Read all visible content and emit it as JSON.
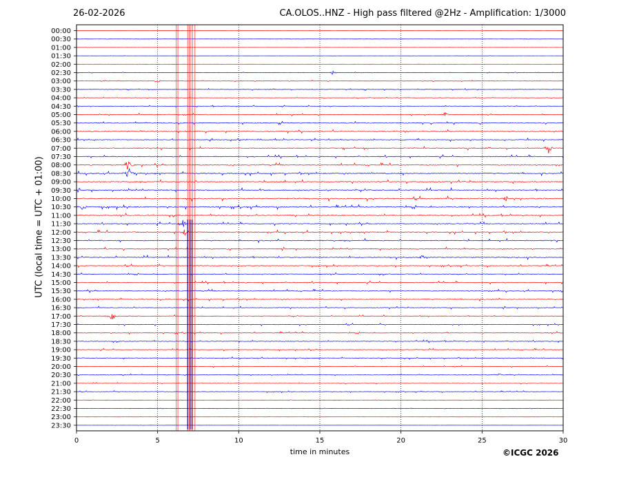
{
  "header": {
    "date": "26-02-2026",
    "title": "CA.OLOS..HNZ - High pass filtered @2Hz - Amplification: 1/3000"
  },
  "footer": {
    "copyright": "©ICGC 2026"
  },
  "chart_data": {
    "type": "line",
    "title": "CA.OLOS..HNZ - High pass filtered @2Hz - Amplification: 1/3000",
    "xlabel": "time in minutes",
    "ylabel": "UTC (local time = UTC + 01:00)",
    "xlim": [
      0,
      30
    ],
    "x_ticks": [
      0,
      5,
      10,
      15,
      20,
      25,
      30
    ],
    "x_grid": "dotted vertical lines at each x tick",
    "rows": [
      "00:00",
      "00:30",
      "01:00",
      "01:30",
      "02:00",
      "02:30",
      "03:00",
      "03:30",
      "04:00",
      "04:30",
      "05:00",
      "05:30",
      "06:00",
      "06:30",
      "07:00",
      "07:30",
      "08:00",
      "08:30",
      "09:00",
      "09:30",
      "10:00",
      "10:30",
      "11:00",
      "11:30",
      "12:00",
      "12:30",
      "13:00",
      "13:30",
      "14:00",
      "14:30",
      "15:00",
      "15:30",
      "16:00",
      "16:30",
      "17:00",
      "17:30",
      "18:00",
      "18:30",
      "19:00",
      "19:30",
      "20:00",
      "20:30",
      "21:00",
      "21:30",
      "22:00",
      "22:30",
      "23:00",
      "23:30"
    ],
    "trace_colors": [
      "#ff0000",
      "#0000ff"
    ],
    "color_rule": "alternates per row, starting red at 00:00",
    "noise_level": [
      0.05,
      0.08,
      0.05,
      0.06,
      0.05,
      0.15,
      0.2,
      0.25,
      0.2,
      0.25,
      0.35,
      0.4,
      0.45,
      0.4,
      0.45,
      0.45,
      0.5,
      0.55,
      0.5,
      0.55,
      0.6,
      0.6,
      0.5,
      0.45,
      0.5,
      0.5,
      0.45,
      0.5,
      0.4,
      0.35,
      0.4,
      0.4,
      0.4,
      0.35,
      0.3,
      0.3,
      0.35,
      0.35,
      0.3,
      0.3,
      0.25,
      0.25,
      0.2,
      0.25,
      0.1,
      0.1,
      0.05,
      0.05
    ],
    "events": [
      {
        "row": "02:30",
        "minute": 15.8,
        "amplitude": 4
      },
      {
        "row": "03:00",
        "minute": 5.0,
        "amplitude": 3
      },
      {
        "row": "05:00",
        "minute": 22.7,
        "amplitude": 4
      },
      {
        "row": "06:00",
        "minute": 20.3,
        "amplitude": 4
      },
      {
        "row": "07:00",
        "minute": 29.1,
        "amplitude": 9
      },
      {
        "row": "08:00",
        "minute": 3.2,
        "amplitude": 12
      },
      {
        "row": "08:30",
        "minute": 3.2,
        "amplitude": 12
      },
      {
        "row": "10:00",
        "minute": 26.5,
        "amplitude": 5
      },
      {
        "row": "10:30",
        "minute": 0.4,
        "amplitude": 7
      },
      {
        "row": "11:30",
        "minute": 6.5,
        "amplitude": 10
      },
      {
        "row": "12:00",
        "minute": 6.7,
        "amplitude": 6
      },
      {
        "row": "13:30",
        "minute": 21.4,
        "amplitude": 6
      },
      {
        "row": "17:00",
        "minute": 2.2,
        "amplitude": 8
      },
      {
        "row": "20:30",
        "minute": 26.0,
        "amplitude": 3
      }
    ],
    "interference_minutes": [
      6.15,
      6.25,
      6.85,
      6.95,
      7.05,
      7.15,
      7.3
    ],
    "interference_rows": {
      "start": "11:30",
      "end": "23:30"
    }
  }
}
